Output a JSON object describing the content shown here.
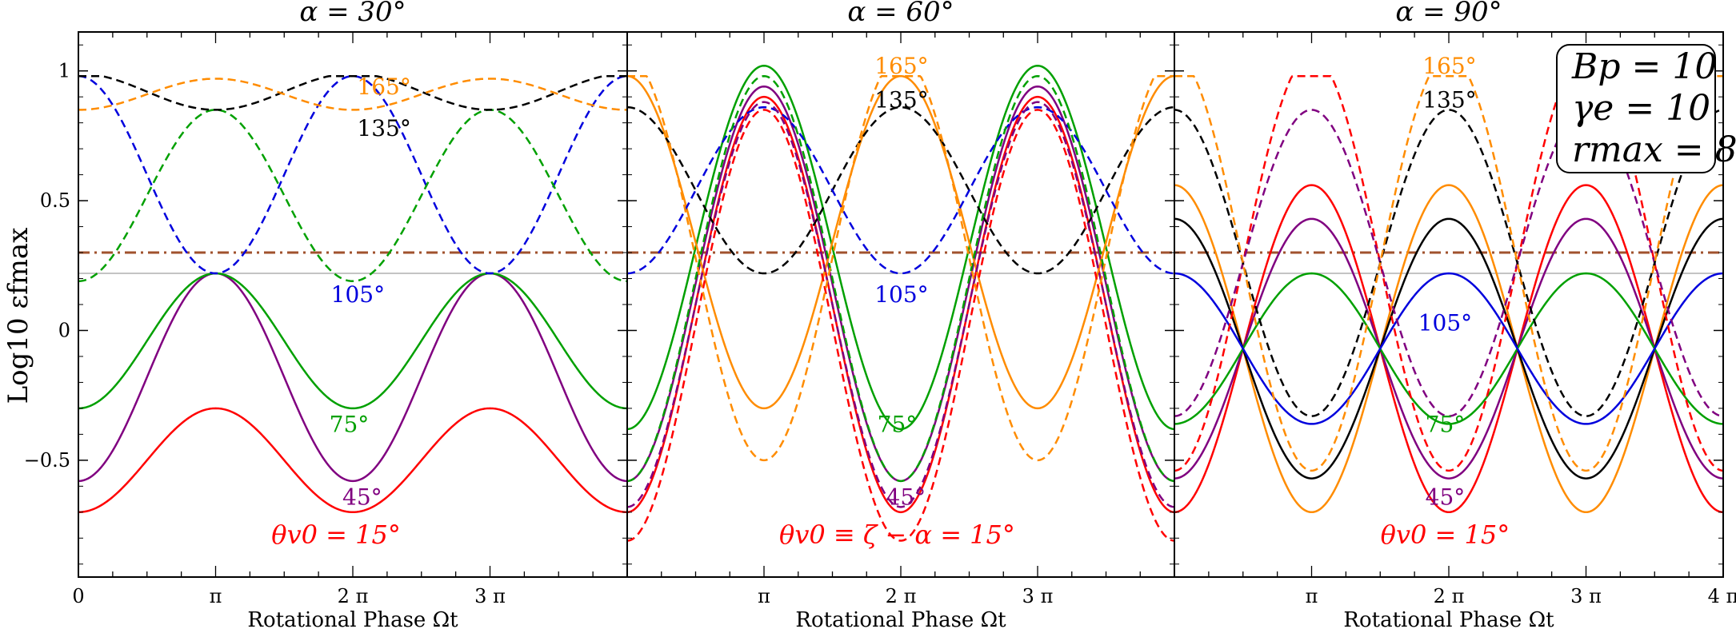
{
  "chart_data": {
    "type": "line",
    "ylabel": "Log10 εfmax",
    "ylim": [
      -0.95,
      1.15
    ],
    "yticks": [
      {
        "value": 1,
        "label": "1"
      },
      {
        "value": 0.5,
        "label": "0.5"
      },
      {
        "value": 0,
        "label": "0"
      },
      {
        "value": -0.5,
        "label": "−0.5"
      }
    ],
    "xlim": [
      0,
      12.566
    ],
    "reference_lines": {
      "dashdot_value": 0.3,
      "dashdot_color": "#a0522d",
      "gray_value": 0.22,
      "gray_color": "#b0b0b0"
    },
    "legend": {
      "lines": [
        "Bp = 10",
        "γe = 10",
        "rmax = 8"
      ]
    },
    "panels": [
      {
        "title": "α = 30°",
        "xlabel": "Rotational Phase Ωt",
        "xticks": [
          {
            "value": 0,
            "label": "0"
          },
          {
            "value": 3.1416,
            "label": "π"
          },
          {
            "value": 6.2832,
            "label": "2 π"
          },
          {
            "value": 9.4248,
            "label": "3 π"
          }
        ],
        "annotations": [
          {
            "text": "165°",
            "x": 7.0,
            "y": 0.94,
            "color": "#ff8c00"
          },
          {
            "text": "135°",
            "x": 7.0,
            "y": 0.78,
            "color": "#000000"
          },
          {
            "text": "105°",
            "x": 6.4,
            "y": 0.14,
            "color": "#0000dd"
          },
          {
            "text": "75°",
            "x": 6.2,
            "y": -0.36,
            "color": "#00a000"
          },
          {
            "text": "45°",
            "x": 6.5,
            "y": -0.64,
            "color": "#800080"
          },
          {
            "text": "θv0 = 15°",
            "x": 5.9,
            "y": -0.79,
            "color": "#ff0000",
            "size": "big"
          }
        ],
        "series": [
          {
            "name": "15°",
            "style": "solid",
            "color": "#ff0000",
            "mid": -0.5,
            "amp": 0.2,
            "period": 6.2832,
            "phase": 3.1416,
            "clip": null
          },
          {
            "name": "45°",
            "style": "solid",
            "color": "#800080",
            "mid": -0.18,
            "amp": 0.4,
            "period": 6.2832,
            "phase": 3.1416,
            "clip": null
          },
          {
            "name": "75°",
            "style": "solid",
            "color": "#00a000",
            "mid": -0.04,
            "amp": 0.26,
            "period": 6.2832,
            "phase": 3.1416,
            "clip": null
          },
          {
            "name": "105°",
            "style": "dashed",
            "color": "#0000dd",
            "mid": 0.6,
            "amp": 0.38,
            "period": 6.2832,
            "phase": 0,
            "clip": 0.98
          },
          {
            "name": "75° dashed",
            "style": "dashed",
            "color": "#00a000",
            "mid": 0.52,
            "amp": 0.33,
            "period": 6.2832,
            "phase": 3.1416,
            "clip": 0.98
          },
          {
            "name": "135°",
            "style": "dashed",
            "color": "#000000",
            "mid": 0.92,
            "amp": 0.07,
            "period": 6.2832,
            "phase": 0,
            "clip": 0.98
          },
          {
            "name": "165°",
            "style": "dashed",
            "color": "#ff8c00",
            "mid": 0.91,
            "amp": 0.06,
            "period": 6.2832,
            "phase": 3.1416,
            "clip": 0.98
          }
        ]
      },
      {
        "title": "α = 60°",
        "xlabel": "Rotational Phase Ωt",
        "xticks": [
          {
            "value": 3.1416,
            "label": "π"
          },
          {
            "value": 6.2832,
            "label": "2 π"
          },
          {
            "value": 9.4248,
            "label": "3 π"
          }
        ],
        "annotations": [
          {
            "text": "165°",
            "x": 6.3,
            "y": 1.02,
            "color": "#ff8c00"
          },
          {
            "text": "135°",
            "x": 6.3,
            "y": 0.89,
            "color": "#000000"
          },
          {
            "text": "105°",
            "x": 6.3,
            "y": 0.14,
            "color": "#0000dd"
          },
          {
            "text": "75°",
            "x": 6.2,
            "y": -0.36,
            "color": "#00a000"
          },
          {
            "text": "45°",
            "x": 6.4,
            "y": -0.64,
            "color": "#800080"
          },
          {
            "text": "θv0 ≡ ζ − α = 15°",
            "x": 6.2,
            "y": -0.79,
            "color": "#ff0000",
            "size": "big"
          }
        ],
        "series": [
          {
            "name": "15°",
            "style": "solid",
            "color": "#ff0000",
            "mid": 0.1,
            "amp": 0.8,
            "period": 6.2832,
            "phase": 3.1416,
            "clip": null
          },
          {
            "name": "45°",
            "style": "solid",
            "color": "#800080",
            "mid": 0.18,
            "amp": 0.76,
            "period": 6.2832,
            "phase": 3.1416,
            "clip": null
          },
          {
            "name": "75°",
            "style": "solid",
            "color": "#00a000",
            "mid": 0.32,
            "amp": 0.7,
            "period": 6.2832,
            "phase": 3.1416,
            "clip": null
          },
          {
            "name": "165°",
            "style": "solid",
            "color": "#ff8c00",
            "mid": 0.34,
            "amp": 0.64,
            "period": 6.2832,
            "phase": 0,
            "clip": null
          },
          {
            "name": "135°",
            "style": "dashed",
            "color": "#000000",
            "mid": 0.54,
            "amp": 0.32,
            "period": 6.2832,
            "phase": 0,
            "clip": null
          },
          {
            "name": "105°",
            "style": "dashed",
            "color": "#0000dd",
            "mid": 0.54,
            "amp": 0.32,
            "period": 6.2832,
            "phase": 3.1416,
            "clip": null
          },
          {
            "name": "15° dashed",
            "style": "dashed",
            "color": "#ff0000",
            "mid": 0.02,
            "amp": 0.83,
            "period": 6.2832,
            "phase": 3.1416,
            "clip": 0.98
          },
          {
            "name": "45° dashed",
            "style": "dashed",
            "color": "#800080",
            "mid": 0.1,
            "amp": 0.78,
            "period": 6.2832,
            "phase": 3.1416,
            "clip": 0.98
          },
          {
            "name": "75° dashed",
            "style": "dashed",
            "color": "#00a000",
            "mid": 0.2,
            "amp": 0.78,
            "period": 6.2832,
            "phase": 3.1416,
            "clip": 0.98
          },
          {
            "name": "165° dashed",
            "style": "dashed",
            "color": "#ff8c00",
            "mid": 0.28,
            "amp": 0.78,
            "period": 6.2832,
            "phase": 0,
            "clip": 0.98
          }
        ]
      },
      {
        "title": "α = 90°",
        "xlabel": "Rotational Phase Ωt",
        "xticks": [
          {
            "value": 3.1416,
            "label": "π"
          },
          {
            "value": 6.2832,
            "label": "2 π"
          },
          {
            "value": 9.4248,
            "label": "3 π"
          },
          {
            "value": 12.566,
            "label": "4 π"
          }
        ],
        "annotations": [
          {
            "text": "165°",
            "x": 6.3,
            "y": 1.02,
            "color": "#ff8c00"
          },
          {
            "text": "135°",
            "x": 6.3,
            "y": 0.89,
            "color": "#000000"
          },
          {
            "text": "105°",
            "x": 6.2,
            "y": 0.03,
            "color": "#0000dd"
          },
          {
            "text": "75°",
            "x": 6.2,
            "y": -0.36,
            "color": "#00a000"
          },
          {
            "text": "45°",
            "x": 6.2,
            "y": -0.64,
            "color": "#800080"
          },
          {
            "text": "θv0 = 15°",
            "x": 6.2,
            "y": -0.79,
            "color": "#ff0000",
            "size": "big"
          }
        ],
        "series": [
          {
            "name": "15°",
            "style": "solid",
            "color": "#ff0000",
            "mid": -0.07,
            "amp": 0.63,
            "period": 6.2832,
            "phase": 3.1416,
            "clip": null
          },
          {
            "name": "165°",
            "style": "solid",
            "color": "#ff8c00",
            "mid": -0.07,
            "amp": 0.63,
            "period": 6.2832,
            "phase": 0,
            "clip": null
          },
          {
            "name": "45°",
            "style": "solid",
            "color": "#800080",
            "mid": -0.07,
            "amp": 0.5,
            "period": 6.2832,
            "phase": 3.1416,
            "clip": null
          },
          {
            "name": "135°",
            "style": "solid",
            "color": "#000000",
            "mid": -0.07,
            "amp": 0.5,
            "period": 6.2832,
            "phase": 0,
            "clip": null
          },
          {
            "name": "75°",
            "style": "solid",
            "color": "#00a000",
            "mid": -0.07,
            "amp": 0.29,
            "period": 6.2832,
            "phase": 3.1416,
            "clip": null
          },
          {
            "name": "105°",
            "style": "solid",
            "color": "#0000dd",
            "mid": -0.07,
            "amp": 0.29,
            "period": 6.2832,
            "phase": 0,
            "clip": null
          },
          {
            "name": "15° dashed",
            "style": "dashed",
            "color": "#ff0000",
            "mid": 0.26,
            "amp": 0.8,
            "period": 6.2832,
            "phase": 3.1416,
            "clip": 0.98
          },
          {
            "name": "45° dashed",
            "style": "dashed",
            "color": "#800080",
            "mid": 0.26,
            "amp": 0.59,
            "period": 6.2832,
            "phase": 3.1416,
            "clip": 0.98
          },
          {
            "name": "135° dashed",
            "style": "dashed",
            "color": "#000000",
            "mid": 0.26,
            "amp": 0.59,
            "period": 6.2832,
            "phase": 0,
            "clip": 0.98
          },
          {
            "name": "165° dashed",
            "style": "dashed",
            "color": "#ff8c00",
            "mid": 0.26,
            "amp": 0.8,
            "period": 6.2832,
            "phase": 0,
            "clip": 0.98
          }
        ]
      }
    ]
  }
}
